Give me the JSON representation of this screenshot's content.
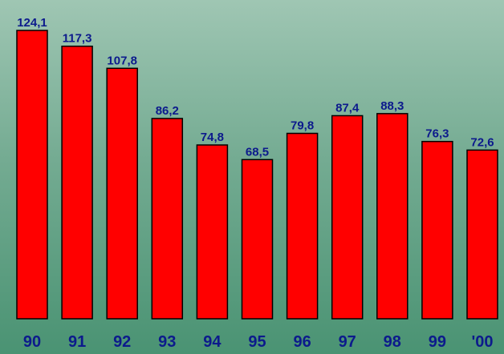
{
  "chart_data": {
    "type": "bar",
    "categories": [
      "90",
      "91",
      "92",
      "93",
      "94",
      "95",
      "96",
      "97",
      "98",
      "99",
      "'00"
    ],
    "values": [
      "124,1",
      "117,3",
      "107,8",
      "86,2",
      "74,8",
      "68,5",
      "79,8",
      "87,4",
      "88,3",
      "76,3",
      "72,6"
    ],
    "numeric_values": [
      124.1,
      117.3,
      107.8,
      86.2,
      74.8,
      68.5,
      79.8,
      87.4,
      88.3,
      76.3,
      72.6
    ],
    "title": "",
    "xlabel": "",
    "ylabel": "",
    "ylim": [
      0,
      124.1
    ],
    "grid": false,
    "legend": "none"
  },
  "colors": {
    "bar_fill": "#ff0000",
    "bar_stroke": "#000000",
    "value_label": "#0c1a8c",
    "category_label": "#0c1a8c",
    "background_top": "#9fc6b3",
    "background_bottom": "#4a9373"
  }
}
